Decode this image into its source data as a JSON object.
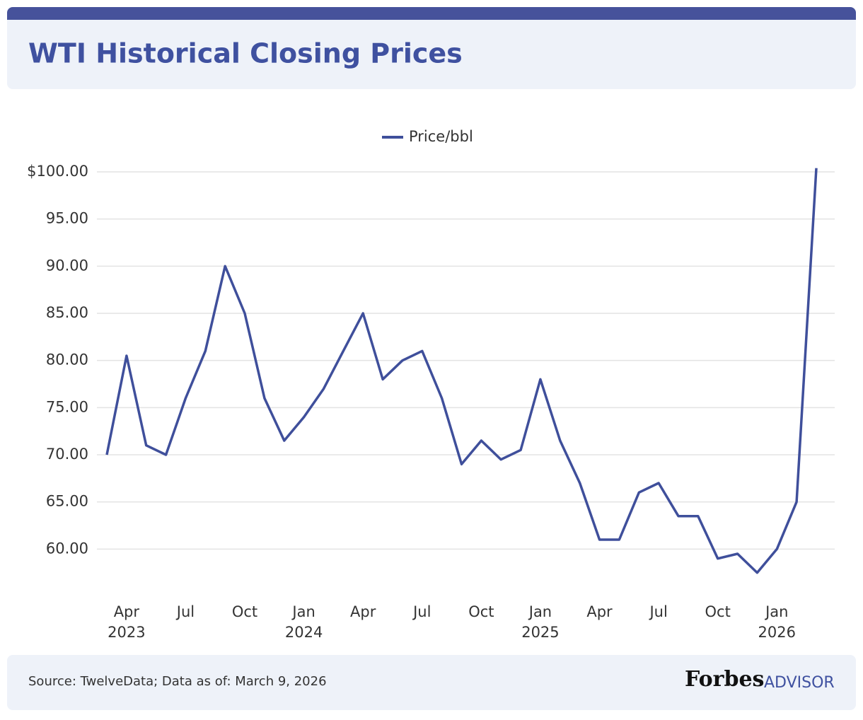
{
  "title": "WTI Historical Closing Prices",
  "chart_data": {
    "type": "line",
    "legend": "top",
    "grid": true,
    "x": [
      "2023-03",
      "2023-04",
      "2023-05",
      "2023-06",
      "2023-07",
      "2023-08",
      "2023-09",
      "2023-10",
      "2023-11",
      "2023-12",
      "2024-01",
      "2024-02",
      "2024-03",
      "2024-04",
      "2024-05",
      "2024-06",
      "2024-07",
      "2024-08",
      "2024-09",
      "2024-10",
      "2024-11",
      "2024-12",
      "2025-01",
      "2025-02",
      "2025-03",
      "2025-04",
      "2025-05",
      "2025-06",
      "2025-07",
      "2025-08",
      "2025-09",
      "2025-10",
      "2025-11",
      "2025-12",
      "2026-01",
      "2026-02",
      "2026-03"
    ],
    "series": [
      {
        "name": "Price/bbl",
        "color": "#3f4f9b",
        "values": [
          70,
          80.5,
          71,
          70,
          76,
          81,
          90,
          85,
          76,
          71.5,
          74,
          77,
          81,
          85,
          78,
          80,
          81,
          76,
          69,
          71.5,
          69.5,
          70.5,
          78,
          71.5,
          67,
          61,
          61,
          66,
          67,
          63.5,
          63.5,
          59,
          59.5,
          57.5,
          60,
          65,
          100.4
        ]
      }
    ],
    "xlim": [
      "2023-03",
      "2026-03"
    ],
    "xticks": [
      {
        "value": "2023-04",
        "label": "Apr",
        "year": "2023"
      },
      {
        "value": "2023-07",
        "label": "Jul"
      },
      {
        "value": "2023-10",
        "label": "Oct"
      },
      {
        "value": "2024-01",
        "label": "Jan",
        "year": "2024"
      },
      {
        "value": "2024-04",
        "label": "Apr"
      },
      {
        "value": "2024-07",
        "label": "Jul"
      },
      {
        "value": "2024-10",
        "label": "Oct"
      },
      {
        "value": "2025-01",
        "label": "Jan",
        "year": "2025"
      },
      {
        "value": "2025-04",
        "label": "Apr"
      },
      {
        "value": "2025-07",
        "label": "Jul"
      },
      {
        "value": "2025-10",
        "label": "Oct"
      },
      {
        "value": "2026-01",
        "label": "Jan",
        "year": "2026"
      }
    ],
    "ylim": [
      55,
      100
    ],
    "yticks": [
      {
        "value": 60,
        "label": "60.00"
      },
      {
        "value": 65,
        "label": "65.00"
      },
      {
        "value": 70,
        "label": "70.00"
      },
      {
        "value": 75,
        "label": "75.00"
      },
      {
        "value": 80,
        "label": "80.00"
      },
      {
        "value": 85,
        "label": "85.00"
      },
      {
        "value": 90,
        "label": "90.00"
      },
      {
        "value": 95,
        "label": "95.00"
      },
      {
        "value": 100,
        "label": "$100.00"
      }
    ]
  },
  "footer": {
    "source": "Source: TwelveData; Data as of: March 9, 2026",
    "brand": "Forbes",
    "brand_sub": "ADVISOR"
  }
}
